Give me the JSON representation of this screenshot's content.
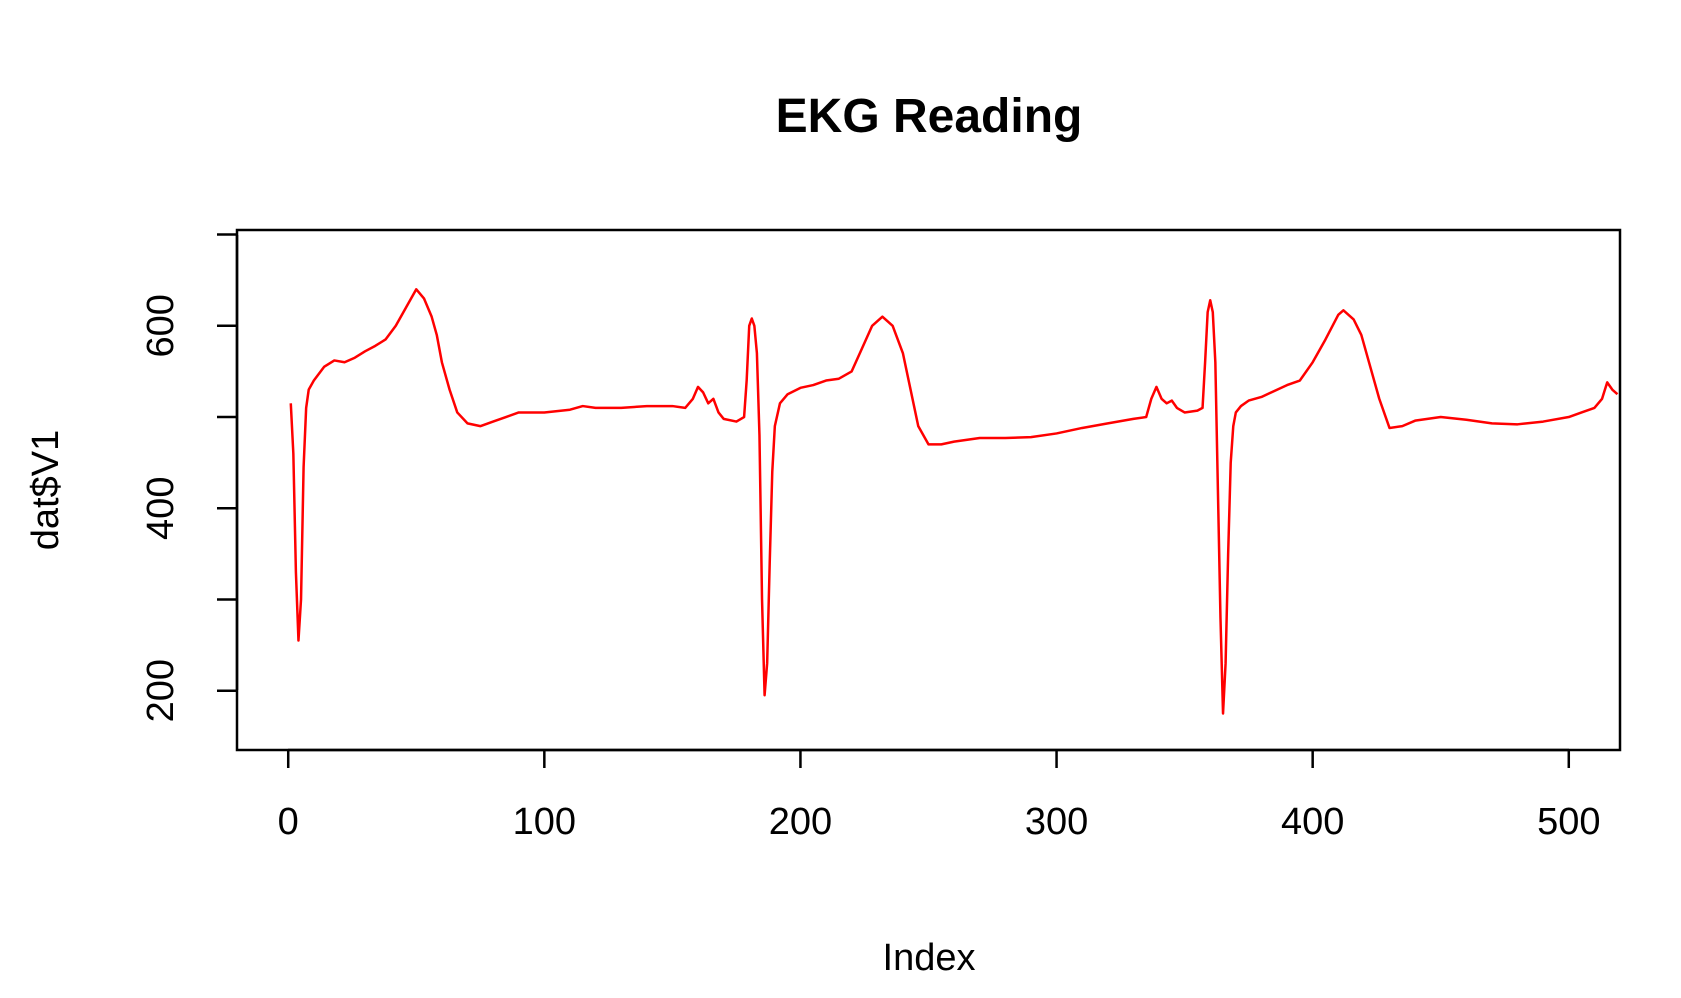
{
  "chart_data": {
    "type": "line",
    "title": "EKG Reading",
    "xlabel": "Index",
    "ylabel": "dat$V1",
    "xlim": [
      -20,
      520
    ],
    "ylim": [
      135,
      705
    ],
    "xticks": [
      0,
      100,
      200,
      300,
      400,
      500
    ],
    "xtick_labels": [
      "0",
      "100",
      "200",
      "300",
      "400",
      "500"
    ],
    "yticks": [
      200,
      300,
      400,
      500,
      600,
      700
    ],
    "ytick_labels": [
      "200",
      "",
      "400",
      "",
      "600",
      ""
    ],
    "grid": false,
    "legend": "none",
    "series": [
      {
        "color": "#ff0000",
        "points": [
          [
            1,
            515
          ],
          [
            2,
            460
          ],
          [
            3,
            330
          ],
          [
            4,
            255
          ],
          [
            5,
            300
          ],
          [
            6,
            445
          ],
          [
            7,
            510
          ],
          [
            8,
            530
          ],
          [
            10,
            540
          ],
          [
            14,
            555
          ],
          [
            18,
            562
          ],
          [
            22,
            560
          ],
          [
            26,
            565
          ],
          [
            30,
            572
          ],
          [
            34,
            578
          ],
          [
            38,
            585
          ],
          [
            42,
            600
          ],
          [
            46,
            620
          ],
          [
            50,
            640
          ],
          [
            53,
            630
          ],
          [
            56,
            610
          ],
          [
            58,
            590
          ],
          [
            60,
            560
          ],
          [
            63,
            530
          ],
          [
            66,
            505
          ],
          [
            70,
            493
          ],
          [
            75,
            490
          ],
          [
            80,
            495
          ],
          [
            85,
            500
          ],
          [
            90,
            505
          ],
          [
            100,
            505
          ],
          [
            110,
            508
          ],
          [
            115,
            512
          ],
          [
            120,
            510
          ],
          [
            130,
            510
          ],
          [
            140,
            512
          ],
          [
            150,
            512
          ],
          [
            155,
            510
          ],
          [
            158,
            520
          ],
          [
            160,
            533
          ],
          [
            162,
            527
          ],
          [
            164,
            515
          ],
          [
            166,
            520
          ],
          [
            168,
            505
          ],
          [
            170,
            498
          ],
          [
            175,
            495
          ],
          [
            178,
            500
          ],
          [
            179,
            540
          ],
          [
            180,
            600
          ],
          [
            181,
            608
          ],
          [
            182,
            600
          ],
          [
            183,
            570
          ],
          [
            184,
            480
          ],
          [
            185,
            300
          ],
          [
            186,
            195
          ],
          [
            187,
            230
          ],
          [
            188,
            340
          ],
          [
            189,
            440
          ],
          [
            190,
            490
          ],
          [
            192,
            515
          ],
          [
            195,
            525
          ],
          [
            200,
            532
          ],
          [
            205,
            535
          ],
          [
            210,
            540
          ],
          [
            215,
            542
          ],
          [
            220,
            550
          ],
          [
            224,
            575
          ],
          [
            228,
            600
          ],
          [
            232,
            610
          ],
          [
            236,
            600
          ],
          [
            240,
            570
          ],
          [
            243,
            530
          ],
          [
            246,
            490
          ],
          [
            250,
            470
          ],
          [
            255,
            470
          ],
          [
            260,
            473
          ],
          [
            270,
            477
          ],
          [
            280,
            477
          ],
          [
            290,
            478
          ],
          [
            300,
            482
          ],
          [
            310,
            488
          ],
          [
            320,
            493
          ],
          [
            330,
            498
          ],
          [
            335,
            500
          ],
          [
            337,
            520
          ],
          [
            339,
            533
          ],
          [
            341,
            520
          ],
          [
            343,
            515
          ],
          [
            345,
            518
          ],
          [
            347,
            510
          ],
          [
            350,
            505
          ],
          [
            355,
            507
          ],
          [
            357,
            510
          ],
          [
            358,
            560
          ],
          [
            359,
            615
          ],
          [
            360,
            628
          ],
          [
            361,
            615
          ],
          [
            362,
            560
          ],
          [
            363,
            420
          ],
          [
            364,
            280
          ],
          [
            365,
            175
          ],
          [
            366,
            230
          ],
          [
            367,
            350
          ],
          [
            368,
            450
          ],
          [
            369,
            490
          ],
          [
            370,
            505
          ],
          [
            372,
            512
          ],
          [
            375,
            518
          ],
          [
            380,
            522
          ],
          [
            390,
            535
          ],
          [
            395,
            540
          ],
          [
            400,
            560
          ],
          [
            405,
            585
          ],
          [
            410,
            612
          ],
          [
            412,
            617
          ],
          [
            416,
            607
          ],
          [
            419,
            590
          ],
          [
            422,
            560
          ],
          [
            426,
            520
          ],
          [
            430,
            488
          ],
          [
            435,
            490
          ],
          [
            440,
            496
          ],
          [
            450,
            500
          ],
          [
            460,
            497
          ],
          [
            470,
            493
          ],
          [
            480,
            492
          ],
          [
            490,
            495
          ],
          [
            500,
            500
          ],
          [
            505,
            505
          ],
          [
            510,
            510
          ],
          [
            513,
            520
          ],
          [
            515,
            538
          ],
          [
            517,
            530
          ],
          [
            519,
            525
          ]
        ]
      }
    ]
  }
}
